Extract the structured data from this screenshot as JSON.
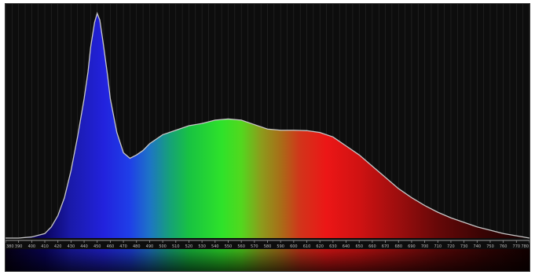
{
  "chart_data": {
    "type": "area",
    "title": "",
    "xlabel": "",
    "ylabel": "",
    "xlim": [
      380,
      780
    ],
    "ylim": [
      0,
      1
    ],
    "grid": true,
    "x_ticks": [
      380,
      390,
      400,
      410,
      420,
      430,
      440,
      450,
      460,
      470,
      480,
      490,
      500,
      510,
      520,
      530,
      540,
      550,
      560,
      570,
      580,
      590,
      600,
      610,
      620,
      630,
      640,
      650,
      660,
      670,
      680,
      690,
      700,
      710,
      720,
      730,
      740,
      750,
      760,
      770,
      780
    ],
    "series": [
      {
        "x": [
          380,
          390,
          400,
          410,
          415,
          420,
          425,
          430,
          435,
          440,
          443,
          445,
          448,
          450,
          452,
          455,
          458,
          460,
          465,
          470,
          475,
          480,
          485,
          490,
          500,
          510,
          520,
          530,
          540,
          550,
          560,
          570,
          580,
          590,
          600,
          610,
          620,
          630,
          640,
          650,
          660,
          670,
          680,
          690,
          700,
          710,
          720,
          730,
          740,
          750,
          760,
          770,
          780
        ],
        "values": [
          0.0,
          0.0,
          0.005,
          0.02,
          0.05,
          0.1,
          0.18,
          0.3,
          0.45,
          0.62,
          0.74,
          0.85,
          0.96,
          1.0,
          0.97,
          0.85,
          0.72,
          0.62,
          0.47,
          0.38,
          0.355,
          0.37,
          0.39,
          0.42,
          0.46,
          0.48,
          0.5,
          0.51,
          0.525,
          0.53,
          0.525,
          0.505,
          0.485,
          0.48,
          0.48,
          0.478,
          0.47,
          0.45,
          0.41,
          0.37,
          0.32,
          0.27,
          0.22,
          0.18,
          0.145,
          0.115,
          0.09,
          0.07,
          0.05,
          0.035,
          0.02,
          0.01,
          0.0
        ]
      }
    ],
    "spectrum_colors": [
      {
        "wl": 380,
        "color": "#060016"
      },
      {
        "wl": 410,
        "color": "#0a0460"
      },
      {
        "wl": 430,
        "color": "#1a1aaa"
      },
      {
        "wl": 455,
        "color": "#2222dd"
      },
      {
        "wl": 475,
        "color": "#1f3fe8"
      },
      {
        "wl": 490,
        "color": "#1d74c6"
      },
      {
        "wl": 505,
        "color": "#16a07a"
      },
      {
        "wl": 520,
        "color": "#18c242"
      },
      {
        "wl": 545,
        "color": "#2ee22a"
      },
      {
        "wl": 560,
        "color": "#52d81e"
      },
      {
        "wl": 575,
        "color": "#8c9c1c"
      },
      {
        "wl": 590,
        "color": "#a86e18"
      },
      {
        "wl": 605,
        "color": "#d2341a"
      },
      {
        "wl": 625,
        "color": "#ec1616"
      },
      {
        "wl": 650,
        "color": "#d01212"
      },
      {
        "wl": 680,
        "color": "#9c0e0e"
      },
      {
        "wl": 710,
        "color": "#660808"
      },
      {
        "wl": 745,
        "color": "#380404"
      },
      {
        "wl": 780,
        "color": "#140000"
      }
    ],
    "colors": {
      "background": "#0d0d0d",
      "grid": "#2a2a2a",
      "outline": "#c8c8c8",
      "tick_text": "#bdbdbd"
    }
  }
}
